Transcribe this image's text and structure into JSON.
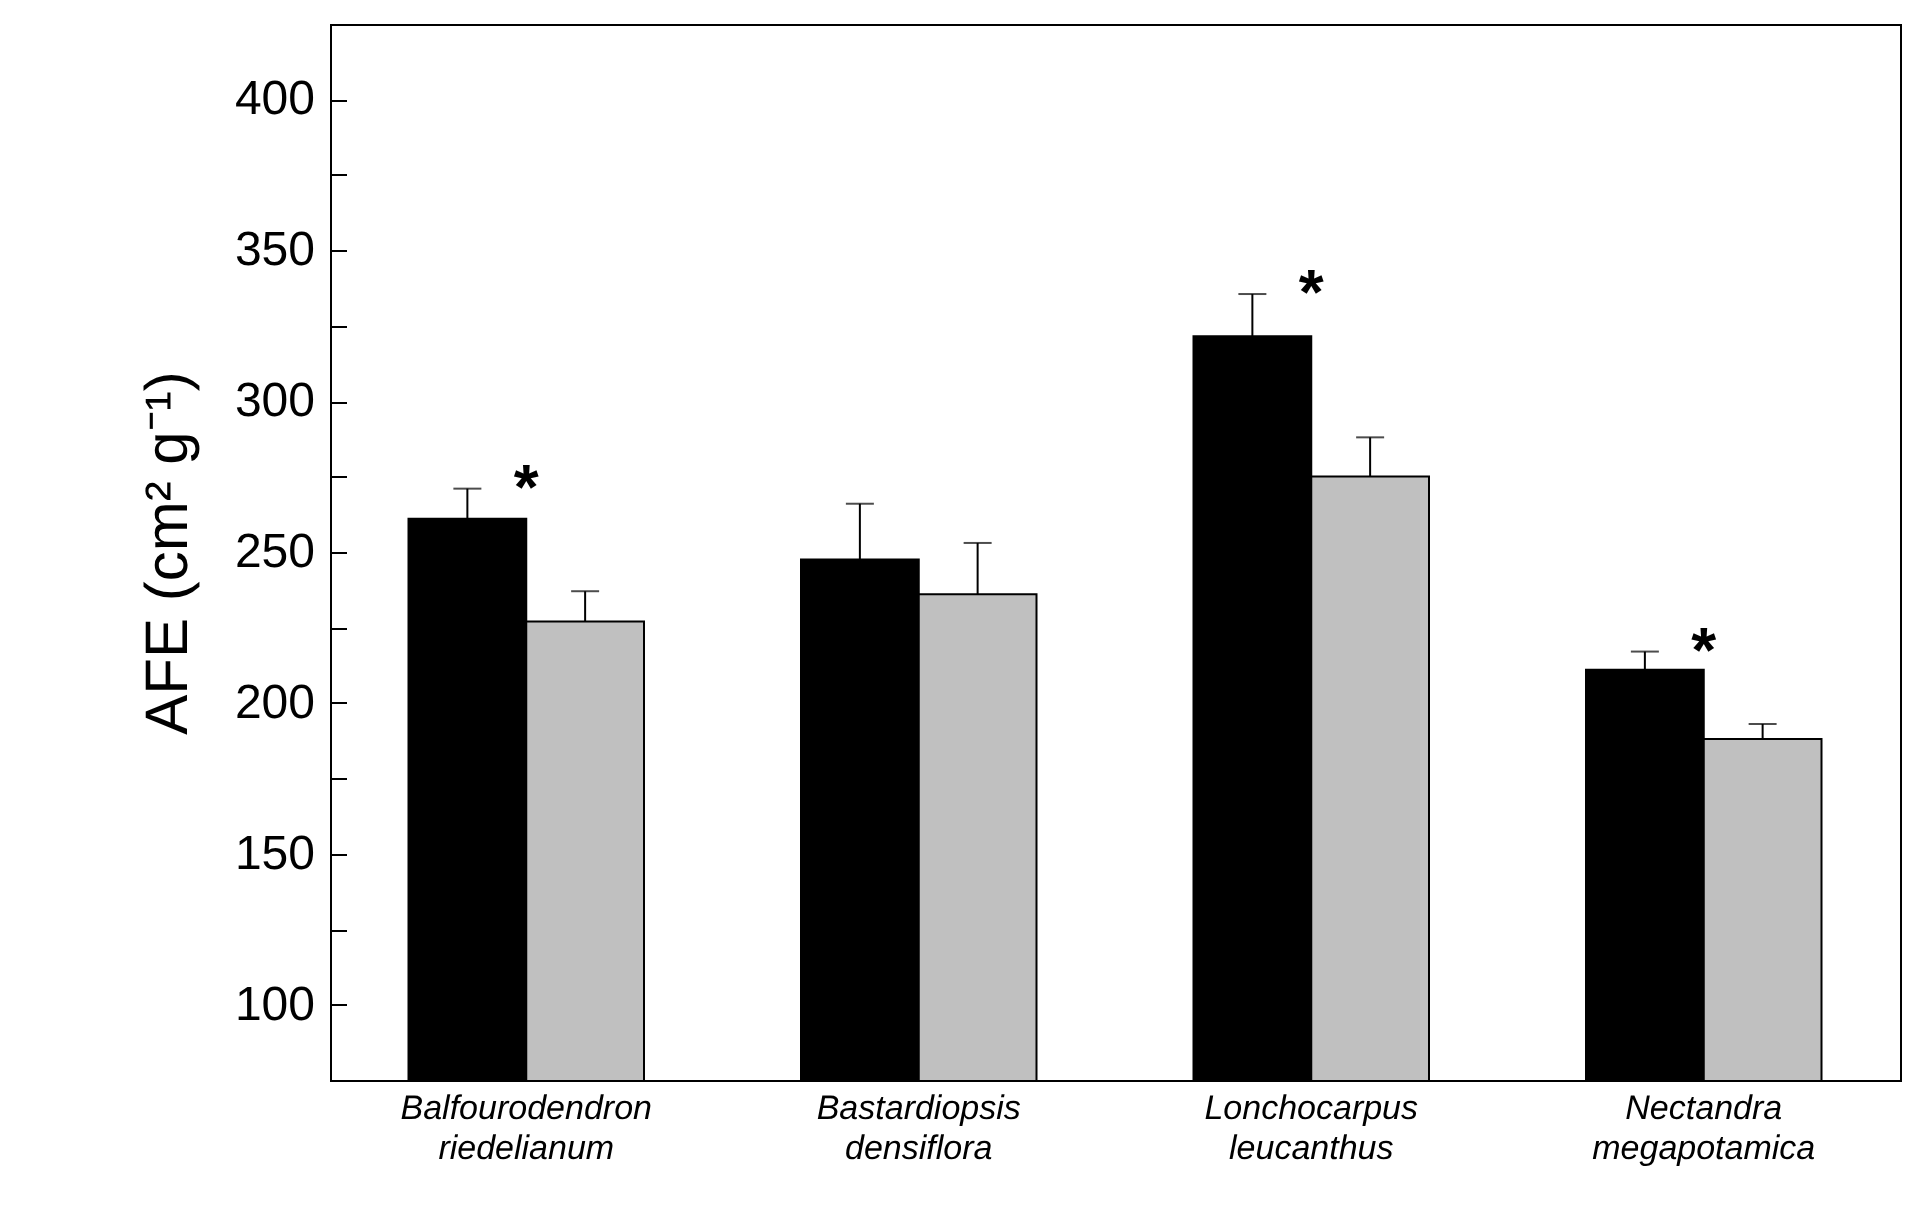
{
  "chart_data": {
    "type": "bar",
    "ylabel": "AFE (cm² g⁻¹)",
    "categories": [
      "Balfourodendron riedelianum",
      "Bastardiopsis densiflora",
      "Lonchocarpus leucanthus",
      "Nectandra megapotamica"
    ],
    "series": [
      {
        "color": "#000000",
        "values": [
          261,
          247.5,
          321.5,
          211
        ],
        "errors": [
          [
            261,
            271
          ],
          [
            247.5,
            266
          ],
          [
            321.5,
            335.5
          ],
          [
            211,
            217
          ]
        ],
        "value_labels": [
          "*",
          null,
          "*",
          "*"
        ]
      },
      {
        "color": "#c0c0c0",
        "values": [
          227,
          236,
          275,
          188
        ],
        "errors": [
          [
            227,
            237
          ],
          [
            236,
            253
          ],
          [
            275,
            288
          ],
          [
            188,
            193
          ]
        ]
      }
    ],
    "ylim": [
      75,
      425
    ],
    "yticks": [
      100,
      {
        "value": 125,
        "label": null
      },
      150,
      {
        "value": 175,
        "label": null
      },
      200,
      {
        "value": 225,
        "label": null
      },
      250,
      {
        "value": 275,
        "label": null
      },
      300,
      {
        "value": 325,
        "label": null
      },
      350,
      {
        "value": 375,
        "label": null
      },
      400
    ],
    "grid": false
  }
}
